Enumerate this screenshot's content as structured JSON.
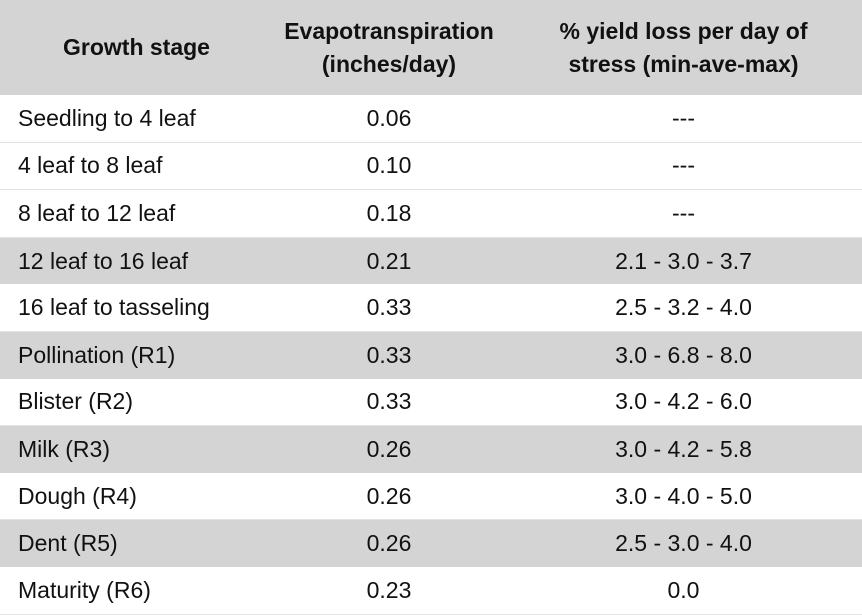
{
  "table": {
    "header": [
      [
        "Growth stage"
      ],
      [
        "Evapotranspiration",
        "(inches/day)"
      ],
      [
        "% yield loss per day of",
        "stress (min-ave-max)"
      ]
    ],
    "rows": [
      [
        "Seedling to 4 leaf",
        "0.06",
        "---"
      ],
      [
        "4 leaf to 8 leaf",
        "0.10",
        "---"
      ],
      [
        "8 leaf to 12 leaf",
        "0.18",
        "---"
      ],
      [
        "12 leaf to 16 leaf",
        "0.21",
        "2.1 - 3.0 - 3.7"
      ],
      [
        "16 leaf to tasseling",
        "0.33",
        "2.5 - 3.2 - 4.0"
      ],
      [
        "Pollination (R1)",
        "0.33",
        "3.0 - 6.8 - 8.0"
      ],
      [
        "Blister (R2)",
        "0.33",
        "3.0 - 4.2 - 6.0"
      ],
      [
        "Milk (R3)",
        "0.26",
        "3.0 - 4.2 - 5.8"
      ],
      [
        "Dough (R4)",
        "0.26",
        "3.0 - 4.0 - 5.0"
      ],
      [
        "Dent (R5)",
        "0.26",
        "2.5 - 3.0 - 4.0"
      ],
      [
        "Maturity (R6)",
        "0.23",
        "0.0"
      ]
    ]
  }
}
